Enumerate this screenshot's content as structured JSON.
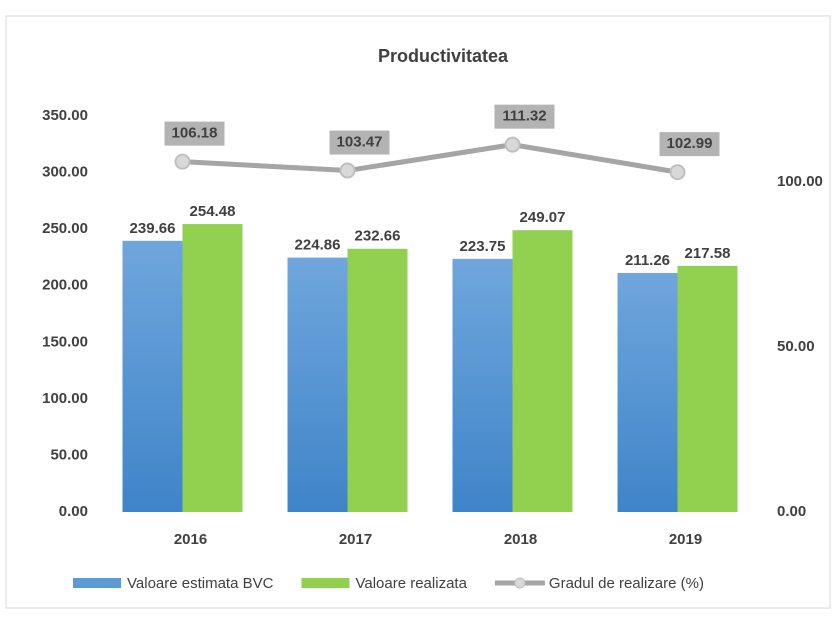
{
  "chart_data": {
    "type": "bar_line",
    "title": "Productivitatea",
    "categories": [
      "2016",
      "2017",
      "2018",
      "2019"
    ],
    "series": [
      {
        "name": "Valoare estimata BVC",
        "color": "#5b9bd5",
        "values": [
          239.66,
          224.86,
          223.75,
          211.26
        ]
      },
      {
        "name": "Valoare realizata",
        "color": "#92d050",
        "values": [
          254.48,
          232.66,
          249.07,
          217.58
        ]
      },
      {
        "name": "Gradul de realizare (%)",
        "color": "#a5a5a5",
        "axis": "y2",
        "values": [
          106.18,
          103.47,
          111.32,
          102.99
        ]
      }
    ],
    "ylim": [
      0,
      350
    ],
    "yticks": [
      {
        "value": 0,
        "label": "0.00"
      },
      {
        "value": 50,
        "label": "50.00"
      },
      {
        "value": 100,
        "label": "100.00"
      },
      {
        "value": 150,
        "label": "150.00"
      },
      {
        "value": 200,
        "label": "200.00"
      },
      {
        "value": 250,
        "label": "250.00"
      },
      {
        "value": 300,
        "label": "300.00"
      },
      {
        "value": 350,
        "label": "350.00"
      }
    ],
    "y2lim": [
      0,
      120
    ],
    "y2ticks": [
      {
        "value": 0,
        "label": "0.00"
      },
      {
        "value": 50,
        "label": "50.00"
      },
      {
        "value": 100,
        "label": "100.00"
      }
    ],
    "grid": false,
    "legend": "bottom"
  }
}
